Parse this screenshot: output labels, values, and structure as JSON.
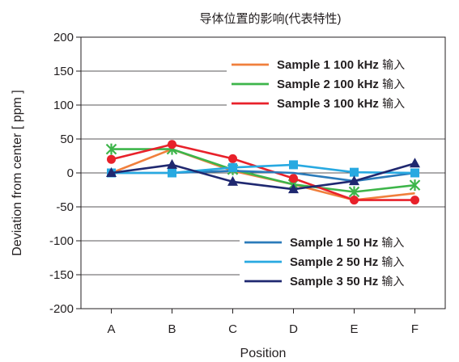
{
  "chart_data": {
    "type": "line",
    "title": "导体位置的影响(代表特性)",
    "xlabel": "Position",
    "ylabel": "Deviation from center [ ppm ]",
    "categories": [
      "A",
      "B",
      "C",
      "D",
      "E",
      "F"
    ],
    "ylim": [
      -200,
      200
    ],
    "yticks": [
      200,
      150,
      100,
      50,
      0,
      -50,
      -100,
      -150,
      -200
    ],
    "grid": true,
    "series": [
      {
        "name": "Sample 1 100 kHz",
        "suffix": "输入",
        "color": "#f07f3c",
        "marker": "none",
        "values": [
          0,
          35,
          3,
          -17,
          -40,
          -30
        ]
      },
      {
        "name": "Sample 2 100 kHz",
        "suffix": "输入",
        "color": "#3db54a",
        "marker": "star",
        "values": [
          35,
          35,
          5,
          -17,
          -28,
          -18
        ]
      },
      {
        "name": "Sample 3 100 kHz",
        "suffix": "输入",
        "color": "#e8212a",
        "marker": "circle",
        "values": [
          20,
          42,
          21,
          -8,
          -40,
          -40
        ]
      },
      {
        "name": "Sample 1 50 Hz",
        "suffix": "输入",
        "color": "#2b7bba",
        "marker": "none",
        "values": [
          0,
          0,
          3,
          0,
          -12,
          0
        ]
      },
      {
        "name": "Sample 2 50 Hz",
        "suffix": "输入",
        "color": "#28a9e1",
        "marker": "square",
        "values": [
          0,
          0,
          8,
          12,
          1,
          0
        ]
      },
      {
        "name": "Sample 3 50 Hz",
        "suffix": "输入",
        "color": "#1f2870",
        "marker": "triangle",
        "values": [
          0,
          12,
          -13,
          -24,
          -12,
          14
        ]
      }
    ],
    "legends": [
      {
        "placement": "top-right",
        "series": [
          0,
          1,
          2
        ]
      },
      {
        "placement": "bottom-right",
        "series": [
          3,
          4,
          5
        ]
      }
    ]
  }
}
